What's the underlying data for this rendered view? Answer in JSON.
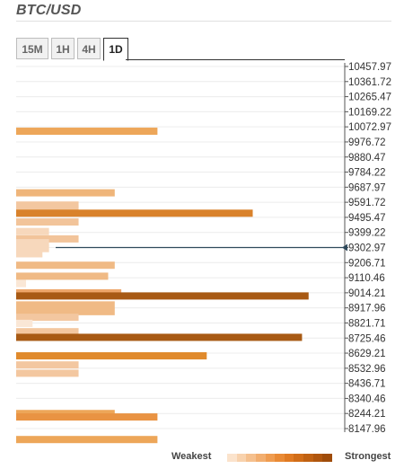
{
  "header": {
    "title": "BTC/USD"
  },
  "tabs": [
    {
      "label": "15M",
      "active": false
    },
    {
      "label": "1H",
      "active": false
    },
    {
      "label": "4H",
      "active": false
    },
    {
      "label": "1D",
      "active": true
    }
  ],
  "legend": {
    "weakest": "Weakest",
    "strongest": "Strongest",
    "colors": [
      "#fbe3cc",
      "#f8d2ad",
      "#f5c08e",
      "#f2ae6f",
      "#ef9c50",
      "#e98a35",
      "#e07a22",
      "#d16d18",
      "#c06112",
      "#b0560e",
      "#9f4c0a"
    ]
  },
  "chart_data": {
    "type": "bar",
    "orientation": "horizontal",
    "title": "BTC/USD",
    "ylim": [
      8147.96,
      10457.97
    ],
    "y_ticks": [
      "10457.97",
      "10361.72",
      "10265.47",
      "10169.22",
      "10072.97",
      "9976.72",
      "9880.47",
      "9784.22",
      "9687.97",
      "9591.72",
      "9495.47",
      "9399.22",
      "9302.97",
      "9206.71",
      "9110.46",
      "9014.21",
      "8917.96",
      "8821.71",
      "8725.46",
      "8629.21",
      "8532.96",
      "8436.71",
      "8340.46",
      "8244.21",
      "8147.96"
    ],
    "current_price": 9302.97,
    "xlim": [
      0,
      10
    ],
    "bars": [
      {
        "price": 10045,
        "strength": 4.3,
        "color": "#eda659"
      },
      {
        "price": 9652,
        "strength": 3.0,
        "color": "#efb57a"
      },
      {
        "price": 9574,
        "strength": 1.9,
        "color": "#f3c7a0"
      },
      {
        "price": 9550,
        "strength": 1.9,
        "color": "#f3c7a0"
      },
      {
        "price": 9522,
        "strength": 7.2,
        "color": "#d9822b"
      },
      {
        "price": 9466,
        "strength": 1.9,
        "color": "#f2c49a"
      },
      {
        "price": 9405,
        "strength": 1.0,
        "color": "#f7d8bc"
      },
      {
        "price": 9358,
        "strength": 1.9,
        "color": "#f2c49a"
      },
      {
        "price": 9334,
        "strength": 1.0,
        "color": "#f7d8bc"
      },
      {
        "price": 9296,
        "strength": 1.0,
        "color": "#f7d8bc"
      },
      {
        "price": 9263,
        "strength": 0.8,
        "color": "#f7d8bc"
      },
      {
        "price": 9190,
        "strength": 3.0,
        "color": "#f0ba85"
      },
      {
        "price": 9120,
        "strength": 2.8,
        "color": "#f0ba85"
      },
      {
        "price": 9073,
        "strength": 0.3,
        "color": "#fae7d6"
      },
      {
        "price": 9014,
        "strength": 3.2,
        "color": "#eda66a"
      },
      {
        "price": 8994,
        "strength": 8.9,
        "color": "#a85a14"
      },
      {
        "price": 8937,
        "strength": 3.0,
        "color": "#f0ba85"
      },
      {
        "price": 8894,
        "strength": 3.0,
        "color": "#f0ba85"
      },
      {
        "price": 8858,
        "strength": 1.9,
        "color": "#f3c7a0"
      },
      {
        "price": 8819,
        "strength": 0.5,
        "color": "#fae7d6"
      },
      {
        "price": 8766,
        "strength": 1.9,
        "color": "#f3c7a0"
      },
      {
        "price": 8730,
        "strength": 8.7,
        "color": "#a85a14"
      },
      {
        "price": 8612,
        "strength": 5.8,
        "color": "#e08a2c"
      },
      {
        "price": 8554,
        "strength": 1.9,
        "color": "#f3c7a0"
      },
      {
        "price": 8501,
        "strength": 1.9,
        "color": "#f3c7a0"
      },
      {
        "price": 8244,
        "strength": 3.0,
        "color": "#eda659"
      },
      {
        "price": 8222,
        "strength": 4.3,
        "color": "#e99343"
      },
      {
        "price": 8078,
        "strength": 4.3,
        "color": "#eda659"
      }
    ]
  }
}
